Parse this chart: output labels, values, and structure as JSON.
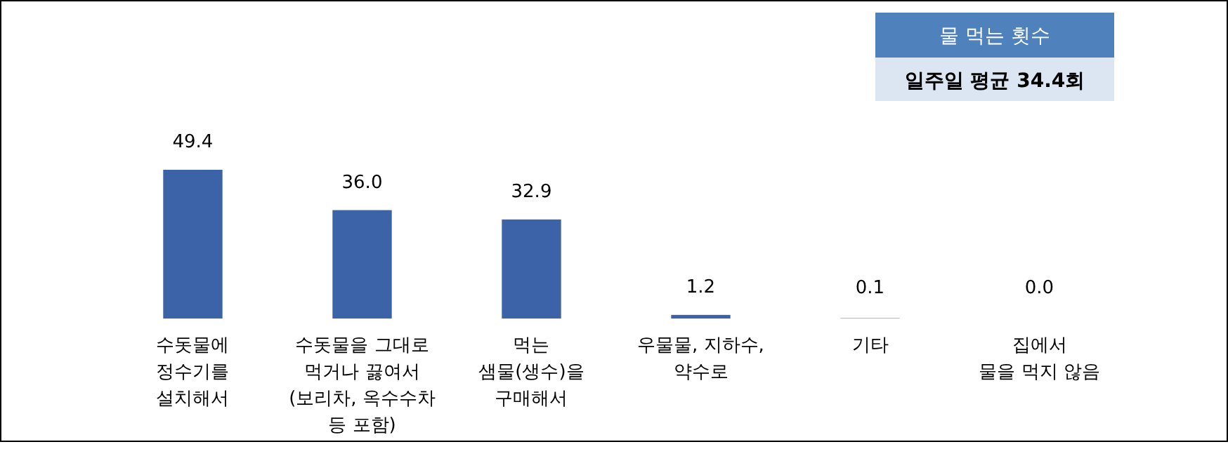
{
  "chart_data": {
    "type": "bar",
    "title": "물 먹는 횟수",
    "subtitle": "일주일 평균 34.4회",
    "categories": [
      "수돗물에\n정수기를\n설치해서",
      "수돗물을 그대로\n먹거나 끓여서\n(보리차, 옥수수차\n등 포함)",
      "먹는\n샘물(생수)을\n구매해서",
      "우물물, 지하수,\n약수로",
      "기타",
      "집에서\n물을 먹지 않음"
    ],
    "values": [
      49.4,
      36.0,
      32.9,
      1.2,
      0.1,
      0.0
    ],
    "value_labels": [
      "49.4",
      "36.0",
      "32.9",
      "1.2",
      "0.1",
      "0.0"
    ],
    "color": "#3c63a8"
  }
}
